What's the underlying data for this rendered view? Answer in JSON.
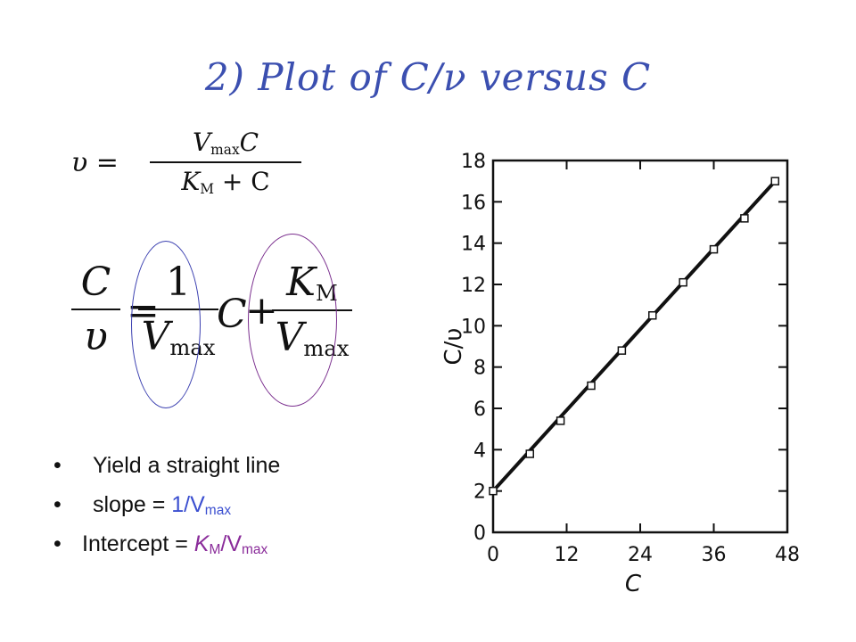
{
  "slide": {
    "title": "2) Plot of C/ν  versus  C",
    "eq1": {
      "lhs": "υ =",
      "num_var": "V",
      "num_sub": "max",
      "num_c": "C",
      "den_k": "K",
      "den_sub": "M",
      "den_rest": " + C"
    },
    "eq2": {
      "lhs_num": "C",
      "lhs_den": "υ",
      "equals": "=",
      "slope_num": "1",
      "slope_den": "V",
      "slope_den_sub": "max",
      "c": "C",
      "plus": "+",
      "int_num": "K",
      "int_num_sub": "M",
      "int_den": "V",
      "int_den_sub": "max"
    },
    "bullets": [
      {
        "text": "Yield a straight line"
      },
      {
        "label": "slope = ",
        "value": "1/V",
        "sub": "max"
      },
      {
        "label": "Intercept = ",
        "value1": "K",
        "sub1": "M",
        "value2": "/V",
        "sub2": "max"
      }
    ],
    "colors": {
      "title": "#3b4fb0",
      "slope_circle": "#3a3fb0",
      "intercept_circle": "#7a2e8e",
      "slope_text": "#3b4fd0",
      "intercept_text": "#8a2c9a"
    }
  },
  "chart_data": {
    "type": "line",
    "xlabel": "C",
    "ylabel": "C/υ",
    "xlim": [
      0,
      48
    ],
    "ylim": [
      0,
      18
    ],
    "xticks": [
      0,
      12,
      24,
      36,
      48
    ],
    "yticks": [
      0,
      2,
      4,
      6,
      8,
      10,
      12,
      14,
      16,
      18
    ],
    "grid": false,
    "series": [
      {
        "x": [
          0,
          6,
          11,
          16,
          21,
          26,
          31,
          36,
          41,
          46
        ],
        "y": [
          2.0,
          3.8,
          5.4,
          7.1,
          8.8,
          10.5,
          12.1,
          13.7,
          15.2,
          17.0
        ]
      }
    ],
    "line": {
      "x": [
        0,
        46
      ],
      "y": [
        2.0,
        17.0
      ]
    }
  }
}
